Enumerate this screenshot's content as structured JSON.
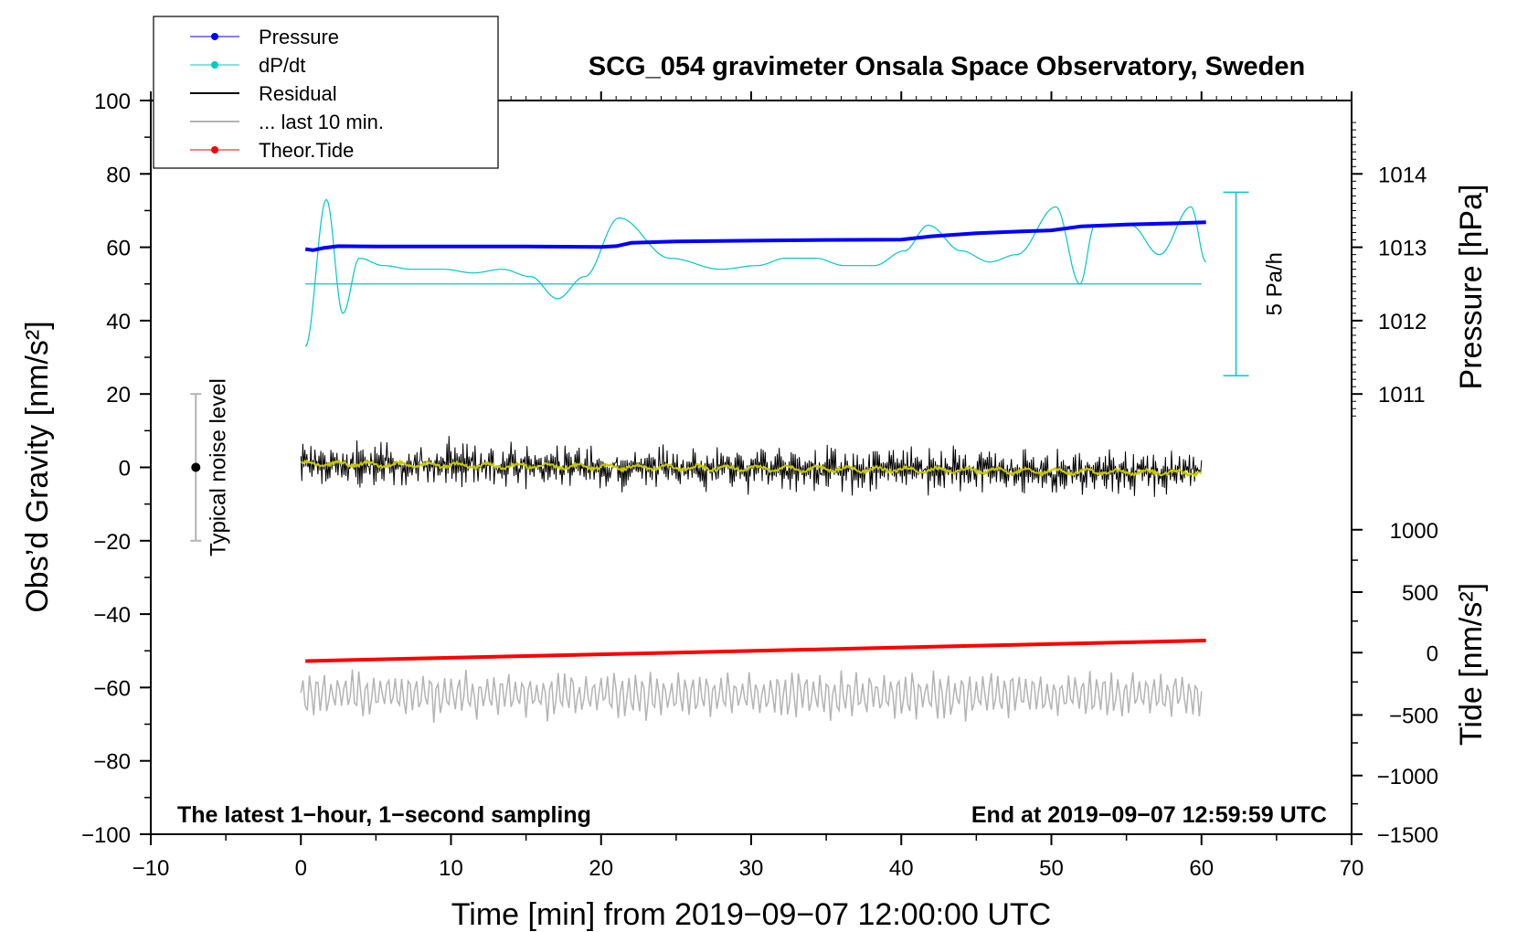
{
  "chart_data": {
    "type": "line",
    "title": "SCG_054 gravimeter Onsala Space Observatory, Sweden",
    "xlabel": "Time [min] from 2019−09−07 12:00:00 UTC",
    "ylabel_left": "Obs’d Gravity [nm/s²]",
    "ylabel_right_top": "Pressure [hPa]",
    "ylabel_right_bottom": "Tide [nm/s²]",
    "xlim": [
      -10,
      70
    ],
    "ylim": [
      -100,
      100
    ],
    "x_ticks": [
      "−10",
      "0",
      "10",
      "20",
      "30",
      "40",
      "50",
      "60",
      "70"
    ],
    "x_tick_values": [
      -10,
      0,
      10,
      20,
      30,
      40,
      50,
      60,
      70
    ],
    "y_ticks": [
      "100",
      "80",
      "60",
      "40",
      "20",
      "0",
      "−20",
      "−40",
      "−60",
      "−80",
      "−100"
    ],
    "y_tick_values": [
      100,
      80,
      60,
      40,
      20,
      0,
      -20,
      -40,
      -60,
      -80,
      -100
    ],
    "pressure_axis": {
      "ticks": [
        "1014",
        "1013",
        "1012",
        "1011"
      ],
      "tick_values": [
        1014,
        1013,
        1012,
        1011
      ],
      "left_equivalent": [
        80,
        60,
        40,
        20
      ]
    },
    "tide_axis": {
      "ticks": [
        "1000",
        "500",
        "0",
        "−500",
        "−1000",
        "−1500"
      ],
      "tick_values": [
        1000,
        500,
        0,
        -500,
        -1000,
        -1500
      ],
      "left_equivalent": [
        -17,
        -34,
        -50.5,
        -67.5,
        -84,
        -100
      ]
    },
    "legend": {
      "position": "top-left",
      "entries": [
        {
          "label": "Pressure",
          "color": "#0000ff"
        },
        {
          "label": "dP/dt",
          "color": "#00c8c8"
        },
        {
          "label": "Residual",
          "color": "#000000"
        },
        {
          "label": "... last 10 min.",
          "color": "#b4b4b4"
        },
        {
          "label": "Theor.Tide",
          "color": "#ff0000"
        }
      ]
    },
    "series": [
      {
        "name": "Pressure",
        "color": "#0000ff",
        "x": [
          0.3,
          0.8,
          1.5,
          2.5,
          5,
          10,
          15,
          20,
          21,
          22,
          25,
          30,
          35,
          40,
          42,
          45,
          48,
          50,
          52,
          55,
          58,
          60.3
        ],
        "y": [
          59.5,
          59.2,
          59.8,
          60.3,
          60.2,
          60.2,
          60.2,
          60.1,
          60.3,
          61.2,
          61.6,
          61.8,
          62.0,
          62.1,
          63.0,
          63.8,
          64.3,
          64.6,
          65.7,
          66.2,
          66.5,
          66.8
        ]
      },
      {
        "name": "dP/dt",
        "color": "#00c8c8",
        "baseline": 50,
        "peaks": [
          [
            0.3,
            33
          ],
          [
            1.7,
            73
          ],
          [
            2.8,
            42
          ],
          [
            3.9,
            57
          ],
          [
            5.5,
            55
          ],
          [
            7.4,
            54
          ],
          [
            9.5,
            54
          ],
          [
            11.5,
            53
          ],
          [
            13.4,
            54
          ],
          [
            15.3,
            52
          ],
          [
            17.1,
            46
          ],
          [
            18.9,
            52
          ],
          [
            21.2,
            68
          ],
          [
            24.6,
            57
          ],
          [
            28.0,
            54
          ],
          [
            30.4,
            55
          ],
          [
            32.3,
            57
          ],
          [
            34.3,
            57
          ],
          [
            36.2,
            55
          ],
          [
            38.2,
            55
          ],
          [
            40.2,
            59
          ],
          [
            41.8,
            66
          ],
          [
            44.0,
            59
          ],
          [
            45.9,
            56
          ],
          [
            47.7,
            58
          ],
          [
            50.3,
            71
          ],
          [
            51.9,
            50
          ],
          [
            52.9,
            66
          ],
          [
            55.3,
            66
          ],
          [
            57.2,
            58
          ],
          [
            59.3,
            71
          ],
          [
            60.3,
            56
          ]
        ]
      },
      {
        "name": "Residual",
        "color": "#000000",
        "mean_start": 1,
        "mean_end": -1.5,
        "amplitude": 7
      },
      {
        "name": "Residual mean",
        "color": "#c8c800"
      },
      {
        "name": "... last 10 min.",
        "color": "#b4b4b4",
        "mean": -62,
        "amplitude": 7
      },
      {
        "name": "Theor.Tide",
        "color": "#ff0000",
        "x": [
          0.3,
          60.3
        ],
        "y": [
          -52.8,
          -47.2
        ]
      }
    ],
    "noise_bar": {
      "label": "Typical noise level",
      "x": -7,
      "range": [
        -20,
        20
      ]
    },
    "scale_bar": {
      "label": "5 Pa/h",
      "x": 62.3,
      "range": [
        25,
        75
      ]
    },
    "annotations": {
      "bottom_left": "The latest 1−hour, 1−second sampling",
      "bottom_right": "End at 2019−09−07 12:59:59 UTC"
    }
  }
}
